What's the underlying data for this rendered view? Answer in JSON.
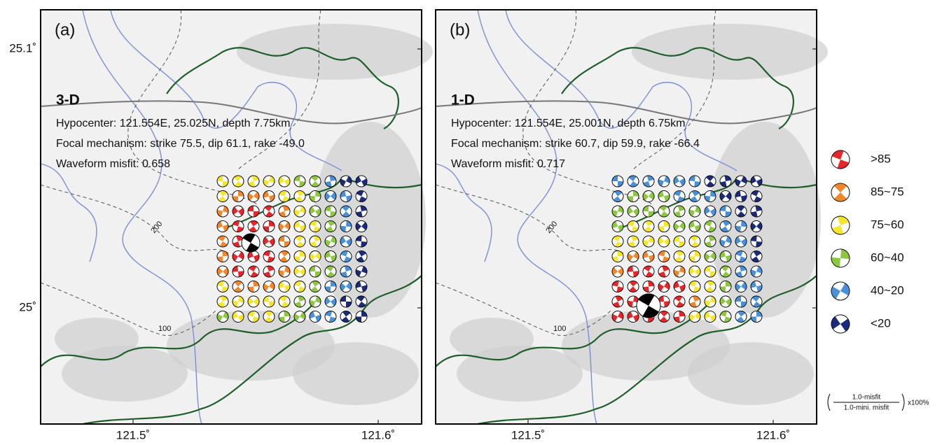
{
  "panels": [
    {
      "label": "(a)",
      "model": "3-D",
      "hypocenter": "Hypocenter: 121.554E, 25.025N, depth 7.75km",
      "mechanism": "Focal mechanism: strike 75.5, dip 61.1, rake -49.0",
      "misfit": "Waveform misfit: 0.658",
      "contours": [
        "200",
        "100"
      ]
    },
    {
      "label": "(b)",
      "model": "1-D",
      "hypocenter": "Hypocenter: 121.554E, 25.001N, depth 6.75km",
      "mechanism": "Focal mechanism: strike 60.7, dip 59.9, rake -66.4",
      "misfit": "Waveform misfit: 0.717",
      "contours": [
        "200",
        "100"
      ]
    }
  ],
  "axes": {
    "x_labels": [
      "121.5˚",
      "121.6˚"
    ],
    "y_labels": [
      "25.1˚",
      "25˚"
    ]
  },
  "legend": {
    "items": [
      {
        "label": ">85",
        "color": "#e8262a"
      },
      {
        "label": "85~75",
        "color": "#f4862a"
      },
      {
        "label": "75~60",
        "color": "#f5e62a"
      },
      {
        "label": "60~40",
        "color": "#8dc63f"
      },
      {
        "label": "40~20",
        "color": "#4a90d9"
      },
      {
        "label": "<20",
        "color": "#1c2a7a"
      }
    ],
    "formula": {
      "numerator": "1.0-misfit",
      "denominator": "1.0-mini. misfit",
      "suffix": "x100%"
    }
  }
}
